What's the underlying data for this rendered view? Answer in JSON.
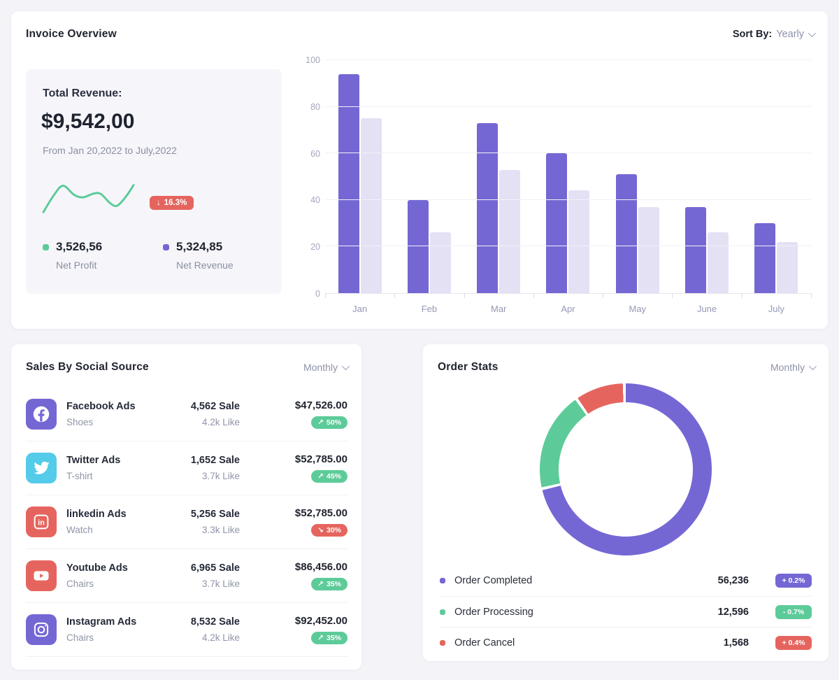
{
  "colors": {
    "purple": "#7467d4",
    "light_purple": "#e4e1f5",
    "green": "#5dcb99",
    "red": "#e5655e",
    "twitter_blue": "#53cbe9",
    "page_bg": "#f4f3f8"
  },
  "invoice_overview": {
    "title": "Invoice Overview",
    "sort_by_label": "Sort By:",
    "sort_by_value": "Yearly",
    "revenue_panel": {
      "title": "Total Revenue:",
      "amount": "$9,542,00",
      "period": "From Jan 20,2022 to July,2022",
      "trend_badge": {
        "arrow": "↓",
        "text": "16.3%",
        "color": "#e5655e"
      },
      "stats": [
        {
          "value": "3,526,56",
          "label": "Net Profit",
          "dot_color": "#5dcb99"
        },
        {
          "value": "5,324,85",
          "label": "Net Revenue",
          "dot_color": "#7467d4"
        }
      ]
    }
  },
  "sales_card": {
    "title": "Sales By Social Source",
    "period_value": "Monthly",
    "rows": [
      {
        "icon": "facebook-icon",
        "tile_color": "#7467d4",
        "title": "Facebook Ads",
        "subtitle": "Shoes",
        "sale": "4,562 Sale",
        "like": "4.2k Like",
        "amount": "$47,526.00",
        "badge": {
          "arrow": "↗",
          "text": "50%",
          "color": "#5dcb99"
        }
      },
      {
        "icon": "twitter-icon",
        "tile_color": "#53cbe9",
        "title": "Twitter Ads",
        "subtitle": "T-shirt",
        "sale": "1,652 Sale",
        "like": "3.7k Like",
        "amount": "$52,785.00",
        "badge": {
          "arrow": "↗",
          "text": "45%",
          "color": "#5dcb99"
        }
      },
      {
        "icon": "linkedin-icon",
        "tile_color": "#e5655e",
        "title": "linkedin Ads",
        "subtitle": "Watch",
        "sale": "5,256 Sale",
        "like": "3.3k Like",
        "amount": "$52,785.00",
        "badge": {
          "arrow": "↘",
          "text": "30%",
          "color": "#e5655e"
        }
      },
      {
        "icon": "youtube-icon",
        "tile_color": "#e5655e",
        "title": "Youtube Ads",
        "subtitle": "Chairs",
        "sale": "6,965 Sale",
        "like": "3.7k Like",
        "amount": "$86,456.00",
        "badge": {
          "arrow": "↗",
          "text": "35%",
          "color": "#5dcb99"
        }
      },
      {
        "icon": "instagram-icon",
        "tile_color": "#7467d4",
        "title": "Instagram Ads",
        "subtitle": "Chairs",
        "sale": "8,532 Sale",
        "like": "4.2k Like",
        "amount": "$92,452.00",
        "badge": {
          "arrow": "↗",
          "text": "35%",
          "color": "#5dcb99"
        }
      }
    ]
  },
  "order_card": {
    "title": "Order Stats",
    "period_value": "Monthly",
    "legend": [
      {
        "label": "Order Completed",
        "value": "56,236",
        "dot_color": "#7467d4",
        "badge": {
          "text": "+ 0.2%",
          "color": "#7467d4"
        }
      },
      {
        "label": "Order Processing",
        "value": "12,596",
        "dot_color": "#5dcb99",
        "badge": {
          "text": "- 0.7%",
          "color": "#5dcb99"
        }
      },
      {
        "label": "Order Cancel",
        "value": "1,568",
        "dot_color": "#e5655e",
        "badge": {
          "text": "+ 0.4%",
          "color": "#e5655e"
        }
      }
    ]
  },
  "chart_data": [
    {
      "type": "bar",
      "name": "invoice-bar-chart",
      "title": "Invoice Overview",
      "categories": [
        "Jan",
        "Feb",
        "Mar",
        "Apr",
        "May",
        "June",
        "July"
      ],
      "series": [
        {
          "name": "primary",
          "color": "#7467d4",
          "values": [
            94,
            40,
            73,
            60,
            51,
            37,
            30
          ]
        },
        {
          "name": "secondary",
          "color": "#e4e1f5",
          "values": [
            75,
            26,
            53,
            44,
            37,
            26,
            22
          ]
        }
      ],
      "ylim": [
        0,
        100
      ],
      "yticks": [
        0,
        20,
        40,
        60,
        80,
        100
      ],
      "grid": true,
      "legend_position": "none"
    },
    {
      "type": "line",
      "name": "revenue-sparkline",
      "color": "#5dcb99",
      "ylim": [
        0,
        50
      ],
      "points": [
        [
          0,
          3
        ],
        [
          0.12,
          30
        ],
        [
          0.22,
          44
        ],
        [
          0.34,
          30
        ],
        [
          0.44,
          26
        ],
        [
          0.56,
          32
        ],
        [
          0.64,
          31
        ],
        [
          0.74,
          17
        ],
        [
          0.82,
          13
        ],
        [
          0.92,
          28
        ],
        [
          1,
          45
        ]
      ]
    },
    {
      "type": "donut",
      "name": "order-stats-donut",
      "gap_deg": 2,
      "inner_ratio": 0.78,
      "segments": [
        {
          "label": "Order Completed",
          "value": 56236,
          "arc_deg": 256,
          "color": "#7467d4"
        },
        {
          "label": "Order Processing",
          "value": 12596,
          "arc_deg": 66,
          "color": "#5dcb99"
        },
        {
          "label": "Order Cancel",
          "value": 1568,
          "arc_deg": 32,
          "color": "#e5655e"
        }
      ]
    }
  ]
}
